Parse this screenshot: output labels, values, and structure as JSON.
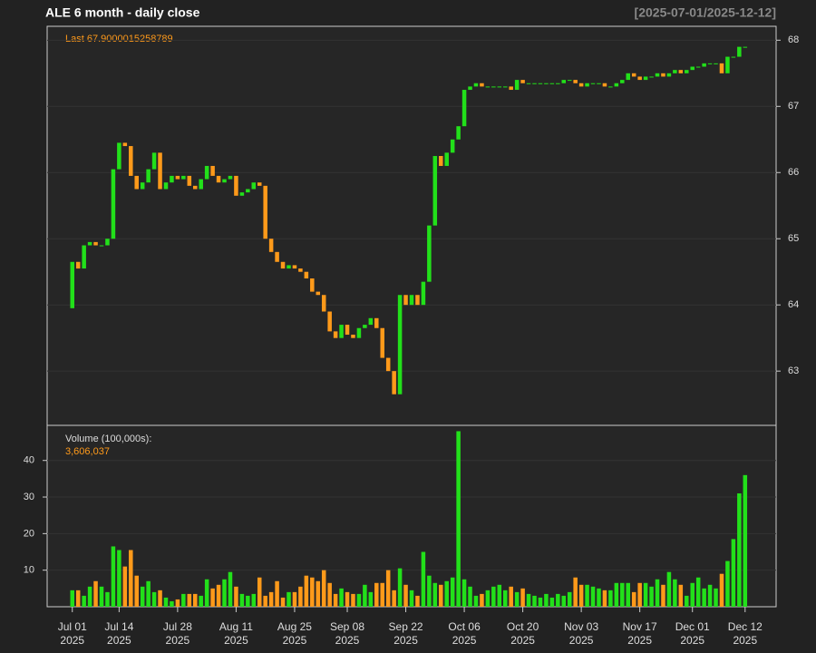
{
  "chart_data": {
    "type": "candlestick",
    "title": "ALE  6 month - daily close",
    "date_range": "[2025-07-01/2025-12-12]",
    "last_label": "Last 67.9000015258789",
    "volume_label": "Volume (100,000s):",
    "volume_last_label": "3,606,037",
    "up_color": "#22e01a",
    "down_color": "#ff9a1a",
    "open": [
      63.95,
      64.65,
      64.55,
      64.9,
      64.95,
      64.9,
      64.9,
      65.0,
      66.05,
      66.45,
      66.4,
      65.95,
      65.75,
      65.85,
      66.05,
      66.3,
      65.75,
      65.85,
      65.95,
      65.9,
      65.95,
      65.8,
      65.75,
      65.9,
      66.1,
      65.95,
      65.85,
      65.9,
      65.95,
      65.65,
      65.7,
      65.75,
      65.85,
      65.8,
      65.0,
      64.8,
      64.65,
      64.55,
      64.6,
      64.55,
      64.5,
      64.4,
      64.2,
      64.15,
      63.9,
      63.6,
      63.5,
      63.7,
      63.55,
      63.5,
      63.65,
      63.7,
      63.8,
      63.65,
      63.2,
      63.0,
      62.65,
      64.15,
      64.0,
      64.15,
      64.0,
      64.35,
      65.2,
      66.25,
      66.1,
      66.3,
      66.5,
      66.7,
      67.25,
      67.3,
      67.35,
      67.3,
      67.3,
      67.3,
      67.3,
      67.3,
      67.25,
      67.4,
      67.35,
      67.35,
      67.35,
      67.35,
      67.35,
      67.35,
      67.35,
      67.4,
      67.4,
      67.35,
      67.3,
      67.35,
      67.35,
      67.35,
      67.3,
      67.3,
      67.35,
      67.4,
      67.5,
      67.45,
      67.4,
      67.45,
      67.45,
      67.5,
      67.45,
      67.5,
      67.55,
      67.5,
      67.55,
      67.6,
      67.6,
      67.65,
      67.65,
      67.65,
      67.5,
      67.75,
      67.75,
      67.9
    ],
    "close": [
      64.65,
      64.55,
      64.9,
      64.95,
      64.9,
      64.9,
      65.0,
      66.05,
      66.45,
      66.4,
      65.95,
      65.75,
      65.85,
      66.05,
      66.3,
      65.75,
      65.85,
      65.95,
      65.9,
      65.95,
      65.8,
      65.75,
      65.9,
      66.1,
      65.95,
      65.85,
      65.9,
      65.95,
      65.65,
      65.7,
      65.75,
      65.85,
      65.8,
      65.0,
      64.8,
      64.65,
      64.55,
      64.6,
      64.55,
      64.5,
      64.4,
      64.2,
      64.15,
      63.9,
      63.6,
      63.5,
      63.7,
      63.55,
      63.5,
      63.65,
      63.7,
      63.8,
      63.65,
      63.2,
      63.0,
      62.65,
      64.15,
      64.0,
      64.15,
      64.0,
      64.35,
      65.2,
      66.25,
      66.1,
      66.3,
      66.5,
      66.7,
      67.25,
      67.3,
      67.35,
      67.3,
      67.3,
      67.3,
      67.3,
      67.3,
      67.25,
      67.4,
      67.35,
      67.35,
      67.35,
      67.35,
      67.35,
      67.35,
      67.35,
      67.4,
      67.4,
      67.35,
      67.3,
      67.35,
      67.35,
      67.35,
      67.3,
      67.3,
      67.35,
      67.4,
      67.5,
      67.45,
      67.4,
      67.45,
      67.45,
      67.5,
      67.45,
      67.5,
      67.55,
      67.5,
      67.55,
      67.6,
      67.6,
      67.65,
      67.65,
      67.65,
      67.5,
      67.75,
      67.75,
      67.9,
      67.9
    ],
    "volume": [
      4.5,
      4.5,
      3,
      5.5,
      7,
      5.5,
      4,
      16.5,
      15.5,
      11,
      15.5,
      8.5,
      5.5,
      7,
      4,
      4.5,
      2.5,
      1.5,
      2,
      3.5,
      3.5,
      3.5,
      3,
      7.5,
      5,
      6,
      7.5,
      9.5,
      5.5,
      3.5,
      3,
      3.5,
      8,
      3,
      4,
      7,
      2.5,
      4,
      4,
      5.5,
      8.5,
      8,
      7,
      10,
      6.5,
      3.5,
      5,
      4,
      3.5,
      3.5,
      6,
      4,
      6.5,
      6.5,
      10,
      4.5,
      10.5,
      6,
      4.5,
      3,
      15,
      8.5,
      6.5,
      6,
      7,
      8,
      48,
      7.5,
      5.5,
      3,
      3.5,
      4.5,
      5.5,
      6,
      4.5,
      5.5,
      4,
      5,
      3.5,
      3,
      2.5,
      3.5,
      2.5,
      3.5,
      3,
      4,
      8,
      6,
      6,
      5.5,
      5,
      4.5,
      4.5,
      6.5,
      6.5,
      6.5,
      4,
      6.5,
      6.5,
      5.5,
      7.5,
      6,
      9.5,
      7.5,
      6,
      3,
      6.5,
      8,
      5,
      6,
      5,
      9,
      12.5,
      18.5,
      31,
      36
    ],
    "ylim": [
      62.18,
      68.21
    ],
    "yticks": [
      63,
      64,
      65,
      66,
      67,
      68
    ],
    "volume_ylim": [
      0,
      49.6
    ],
    "volume_yticks": [
      10,
      20,
      30,
      40
    ],
    "xlim": [
      -4.3,
      120.3
    ],
    "xticks": [
      {
        "value": 0,
        "label": "Jul 01",
        "year": "2025"
      },
      {
        "value": 8,
        "label": "Jul 14",
        "year": "2025"
      },
      {
        "value": 18,
        "label": "Jul 28",
        "year": "2025"
      },
      {
        "value": 28,
        "label": "Aug 11",
        "year": "2025"
      },
      {
        "value": 38,
        "label": "Aug 25",
        "year": "2025"
      },
      {
        "value": 47,
        "label": "Sep 08",
        "year": "2025"
      },
      {
        "value": 57,
        "label": "Sep 22",
        "year": "2025"
      },
      {
        "value": 67,
        "label": "Oct 06",
        "year": "2025"
      },
      {
        "value": 77,
        "label": "Oct 20",
        "year": "2025"
      },
      {
        "value": 87,
        "label": "Nov 03",
        "year": "2025"
      },
      {
        "value": 97,
        "label": "Nov 17",
        "year": "2025"
      },
      {
        "value": 106,
        "label": "Dec 01",
        "year": "2025"
      },
      {
        "value": 115,
        "label": "Dec 12",
        "year": "2025"
      }
    ],
    "grid": true
  }
}
